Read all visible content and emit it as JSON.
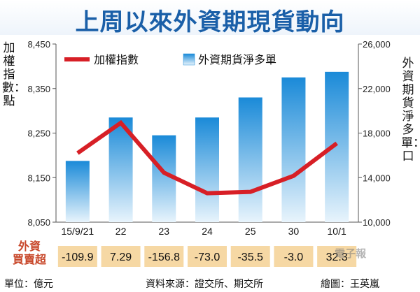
{
  "title": "上周以來外資期現貨動向",
  "left_axis_label": "加權指數：點",
  "right_axis_label": "外資期貨淨多單：口",
  "net_buy_sell_label": [
    "外資",
    "買賣超"
  ],
  "footer": {
    "unit": "單位：億元",
    "source": "資料來源：證交所、期交所",
    "drawn_by": "繪圖：王英嵐"
  },
  "watermark": "電子報",
  "colors": {
    "title": "#1a5fa8",
    "line": "#d71f26",
    "bar_top": "#1a8ad8",
    "bar_bottom": "#e8f4fc",
    "cell": "#f6d8a4"
  },
  "chart_data": {
    "type": "bar+line",
    "categories": [
      "15/9/21",
      "22",
      "23",
      "24",
      "25",
      "30",
      "10/1"
    ],
    "series": [
      {
        "name": "加權指數",
        "type": "line",
        "axis": "left",
        "values": [
          8205,
          8273,
          8161,
          8115,
          8118,
          8154,
          8227
        ]
      },
      {
        "name": "外資期貨淨多單",
        "type": "bar",
        "axis": "right",
        "values": [
          15500,
          19400,
          17800,
          19400,
          21200,
          23000,
          23500
        ]
      }
    ],
    "left_axis": {
      "min": 8050,
      "max": 8450,
      "ticks": [
        "8,450",
        "8,350",
        "8,250",
        "8,150",
        "8,050"
      ]
    },
    "right_axis": {
      "min": 10000,
      "max": 26000,
      "ticks": [
        "26,000",
        "22,000",
        "18,000",
        "14,000",
        "10,000"
      ]
    },
    "legend_placement": "top",
    "net_buy_sell": [
      "-109.9",
      "7.29",
      "-156.8",
      "-73.0",
      "-35.5",
      "-3.0",
      "32.3"
    ]
  }
}
